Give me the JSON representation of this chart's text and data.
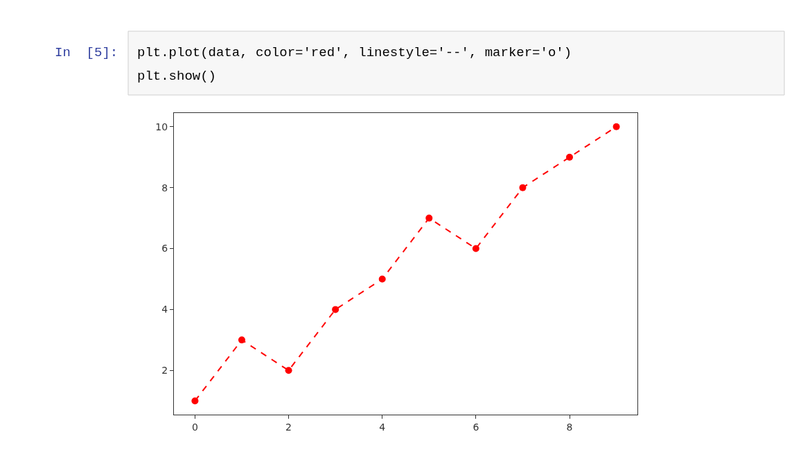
{
  "chart_data": {
    "type": "line",
    "x": [
      0,
      1,
      2,
      3,
      4,
      5,
      6,
      7,
      8,
      9
    ],
    "series": [
      {
        "color": "#ff0000",
        "values": [
          1,
          3,
          2,
          4,
          5,
          7,
          6,
          8,
          9,
          10
        ]
      }
    ],
    "xlim": [
      -0.45,
      9.45
    ],
    "xticks": [
      0,
      2,
      4,
      6,
      8
    ],
    "ylim": [
      0.55,
      10.45
    ],
    "yticks": [
      2,
      4,
      6,
      8,
      10
    ],
    "marker": "circle",
    "line_style": "dashed",
    "annotations": [
      "In  [5]:",
      "plt.plot(data, color='red', linestyle='--', marker='o')",
      "plt.show()"
    ]
  }
}
